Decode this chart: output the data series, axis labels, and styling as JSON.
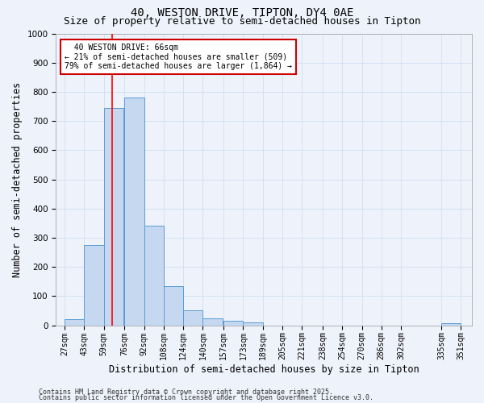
{
  "title1": "40, WESTON DRIVE, TIPTON, DY4 0AE",
  "title2": "Size of property relative to semi-detached houses in Tipton",
  "xlabel": "Distribution of semi-detached houses by size in Tipton",
  "ylabel": "Number of semi-detached properties",
  "bar_color": "#c5d8f0",
  "bar_edge_color": "#5b9bd5",
  "bar_left_edges": [
    27,
    43,
    59,
    76,
    92,
    108,
    124,
    140,
    157,
    173,
    189,
    205,
    221,
    238,
    254,
    270,
    286,
    302,
    319,
    335
  ],
  "bar_widths": [
    16,
    16,
    16,
    16,
    16,
    16,
    16,
    16,
    16,
    16,
    16,
    16,
    16,
    16,
    16,
    16,
    16,
    16,
    16,
    16
  ],
  "bar_heights": [
    22,
    275,
    745,
    780,
    340,
    135,
    50,
    25,
    15,
    10,
    0,
    0,
    0,
    0,
    0,
    0,
    0,
    0,
    0,
    8
  ],
  "tick_labels": [
    "27sqm",
    "43sqm",
    "59sqm",
    "76sqm",
    "92sqm",
    "108sqm",
    "124sqm",
    "140sqm",
    "157sqm",
    "173sqm",
    "189sqm",
    "205sqm",
    "221sqm",
    "238sqm",
    "254sqm",
    "270sqm",
    "286sqm",
    "302sqm",
    "335sqm",
    "351sqm"
  ],
  "tick_positions": [
    27,
    43,
    59,
    76,
    92,
    108,
    124,
    140,
    157,
    173,
    189,
    205,
    221,
    238,
    254,
    270,
    286,
    302,
    335,
    351
  ],
  "red_line_x": 66,
  "ylim": [
    0,
    1000
  ],
  "xlim": [
    20,
    360
  ],
  "annotation_text": "  40 WESTON DRIVE: 66sqm\n← 21% of semi-detached houses are smaller (509)\n79% of semi-detached houses are larger (1,864) →",
  "annotation_box_color": "#ffffff",
  "annotation_box_edge": "#cc0000",
  "footnote1": "Contains HM Land Registry data © Crown copyright and database right 2025.",
  "footnote2": "Contains public sector information licensed under the Open Government Licence v3.0.",
  "grid_color": "#d0dff0",
  "background_color": "#eef2fb",
  "title1_fontsize": 10,
  "title2_fontsize": 9,
  "axis_label_fontsize": 8.5,
  "tick_fontsize": 7,
  "annot_fontsize": 7,
  "footnote_fontsize": 6
}
